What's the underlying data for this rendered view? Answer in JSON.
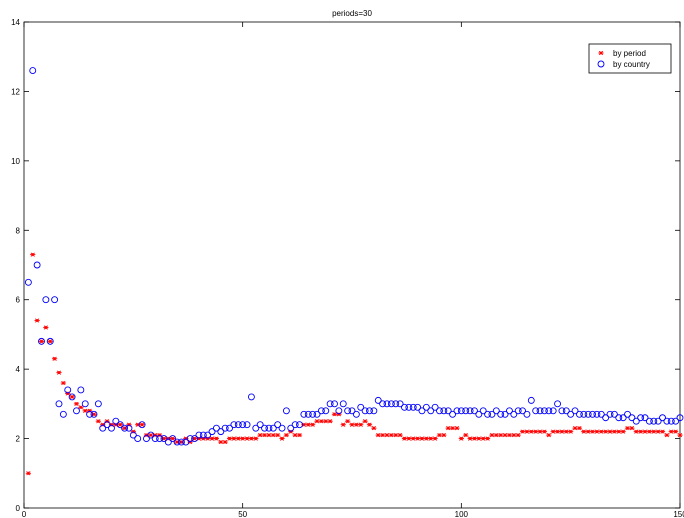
{
  "chart_data": {
    "type": "scatter",
    "title": "periods=30",
    "xlabel": "",
    "ylabel": "",
    "xlim": [
      0,
      150
    ],
    "ylim": [
      0,
      14
    ],
    "xticks": [
      0,
      50,
      100,
      150
    ],
    "yticks": [
      0,
      2,
      4,
      6,
      8,
      10,
      12,
      14
    ],
    "grid": false,
    "legend_position": "top-right",
    "series": [
      {
        "name": "by period",
        "marker": "asterisk",
        "color": "#ff0000",
        "x": [
          1,
          2,
          3,
          4,
          5,
          6,
          7,
          8,
          9,
          10,
          11,
          12,
          13,
          14,
          15,
          16,
          17,
          18,
          19,
          20,
          21,
          22,
          23,
          24,
          25,
          26,
          27,
          28,
          29,
          30,
          31,
          32,
          33,
          34,
          35,
          36,
          37,
          38,
          39,
          40,
          41,
          42,
          43,
          44,
          45,
          46,
          47,
          48,
          49,
          50,
          51,
          52,
          53,
          54,
          55,
          56,
          57,
          58,
          59,
          60,
          61,
          62,
          63,
          64,
          65,
          66,
          67,
          68,
          69,
          70,
          71,
          72,
          73,
          74,
          75,
          76,
          77,
          78,
          79,
          80,
          81,
          82,
          83,
          84,
          85,
          86,
          87,
          88,
          89,
          90,
          91,
          92,
          93,
          94,
          95,
          96,
          97,
          98,
          99,
          100,
          101,
          102,
          103,
          104,
          105,
          106,
          107,
          108,
          109,
          110,
          111,
          112,
          113,
          114,
          115,
          116,
          117,
          118,
          119,
          120,
          121,
          122,
          123,
          124,
          125,
          126,
          127,
          128,
          129,
          130,
          131,
          132,
          133,
          134,
          135,
          136,
          137,
          138,
          139,
          140,
          141,
          142,
          143,
          144,
          145,
          146,
          147,
          148,
          149,
          150
        ],
        "y": [
          1.0,
          7.3,
          5.4,
          4.8,
          5.2,
          4.8,
          4.3,
          3.9,
          3.6,
          3.3,
          3.2,
          3.0,
          2.9,
          2.8,
          2.8,
          2.7,
          2.5,
          2.4,
          2.5,
          2.4,
          2.4,
          2.4,
          2.3,
          2.4,
          2.2,
          2.4,
          2.4,
          2.1,
          2.1,
          2.1,
          2.1,
          2.0,
          2.0,
          2.0,
          1.9,
          1.9,
          2.0,
          1.9,
          2.0,
          2.0,
          2.0,
          2.0,
          2.0,
          2.0,
          1.9,
          1.9,
          2.0,
          2.0,
          2.0,
          2.0,
          2.0,
          2.0,
          2.0,
          2.1,
          2.1,
          2.1,
          2.1,
          2.1,
          2.0,
          2.1,
          2.2,
          2.1,
          2.1,
          2.4,
          2.4,
          2.4,
          2.5,
          2.5,
          2.5,
          2.5,
          2.7,
          2.7,
          2.4,
          2.5,
          2.4,
          2.4,
          2.4,
          2.5,
          2.4,
          2.3,
          2.1,
          2.1,
          2.1,
          2.1,
          2.1,
          2.1,
          2.0,
          2.0,
          2.0,
          2.0,
          2.0,
          2.0,
          2.0,
          2.0,
          2.1,
          2.1,
          2.3,
          2.3,
          2.3,
          2.0,
          2.1,
          2.0,
          2.0,
          2.0,
          2.0,
          2.0,
          2.1,
          2.1,
          2.1,
          2.1,
          2.1,
          2.1,
          2.1,
          2.2,
          2.2,
          2.2,
          2.2,
          2.2,
          2.2,
          2.1,
          2.2,
          2.2,
          2.2,
          2.2,
          2.2,
          2.3,
          2.3,
          2.2,
          2.2,
          2.2,
          2.2,
          2.2,
          2.2,
          2.2,
          2.2,
          2.2,
          2.2,
          2.3,
          2.3,
          2.2,
          2.2,
          2.2,
          2.2,
          2.2,
          2.2,
          2.2,
          2.1,
          2.2,
          2.2,
          2.1
        ]
      },
      {
        "name": "by country",
        "marker": "circle",
        "color": "#0000ff",
        "x": [
          1,
          2,
          3,
          4,
          5,
          6,
          7,
          8,
          9,
          10,
          11,
          12,
          13,
          14,
          15,
          16,
          17,
          18,
          19,
          20,
          21,
          22,
          23,
          24,
          25,
          26,
          27,
          28,
          29,
          30,
          31,
          32,
          33,
          34,
          35,
          36,
          37,
          38,
          39,
          40,
          41,
          42,
          43,
          44,
          45,
          46,
          47,
          48,
          49,
          50,
          51,
          52,
          53,
          54,
          55,
          56,
          57,
          58,
          59,
          60,
          61,
          62,
          63,
          64,
          65,
          66,
          67,
          68,
          69,
          70,
          71,
          72,
          73,
          74,
          75,
          76,
          77,
          78,
          79,
          80,
          81,
          82,
          83,
          84,
          85,
          86,
          87,
          88,
          89,
          90,
          91,
          92,
          93,
          94,
          95,
          96,
          97,
          98,
          99,
          100,
          101,
          102,
          103,
          104,
          105,
          106,
          107,
          108,
          109,
          110,
          111,
          112,
          113,
          114,
          115,
          116,
          117,
          118,
          119,
          120,
          121,
          122,
          123,
          124,
          125,
          126,
          127,
          128,
          129,
          130,
          131,
          132,
          133,
          134,
          135,
          136,
          137,
          138,
          139,
          140,
          141,
          142,
          143,
          144,
          145,
          146,
          147,
          148,
          149,
          150
        ],
        "y": [
          6.5,
          12.6,
          7.0,
          4.8,
          6.0,
          4.8,
          6.0,
          3.0,
          2.7,
          3.4,
          3.2,
          2.8,
          3.4,
          3.0,
          2.7,
          2.7,
          3.0,
          2.3,
          2.4,
          2.3,
          2.5,
          2.4,
          2.3,
          2.3,
          2.1,
          2.0,
          2.4,
          2.0,
          2.1,
          2.0,
          2.0,
          2.0,
          1.9,
          2.0,
          1.9,
          1.9,
          1.9,
          2.0,
          2.0,
          2.1,
          2.1,
          2.1,
          2.2,
          2.3,
          2.2,
          2.3,
          2.3,
          2.4,
          2.4,
          2.4,
          2.4,
          3.2,
          2.3,
          2.4,
          2.3,
          2.3,
          2.3,
          2.4,
          2.3,
          2.8,
          2.3,
          2.4,
          2.4,
          2.7,
          2.7,
          2.7,
          2.7,
          2.8,
          2.8,
          3.0,
          3.0,
          2.8,
          3.0,
          2.8,
          2.8,
          2.7,
          2.9,
          2.8,
          2.8,
          2.8,
          3.1,
          3.0,
          3.0,
          3.0,
          3.0,
          3.0,
          2.9,
          2.9,
          2.9,
          2.9,
          2.8,
          2.9,
          2.8,
          2.9,
          2.8,
          2.8,
          2.8,
          2.7,
          2.8,
          2.8,
          2.8,
          2.8,
          2.8,
          2.7,
          2.8,
          2.7,
          2.7,
          2.8,
          2.7,
          2.7,
          2.8,
          2.7,
          2.8,
          2.8,
          2.7,
          3.1,
          2.8,
          2.8,
          2.8,
          2.8,
          2.8,
          3.0,
          2.8,
          2.8,
          2.7,
          2.8,
          2.7,
          2.7,
          2.7,
          2.7,
          2.7,
          2.7,
          2.6,
          2.7,
          2.7,
          2.6,
          2.6,
          2.7,
          2.6,
          2.5,
          2.6,
          2.6,
          2.5,
          2.5,
          2.5,
          2.6,
          2.5,
          2.5,
          2.5,
          2.6
        ]
      }
    ]
  }
}
